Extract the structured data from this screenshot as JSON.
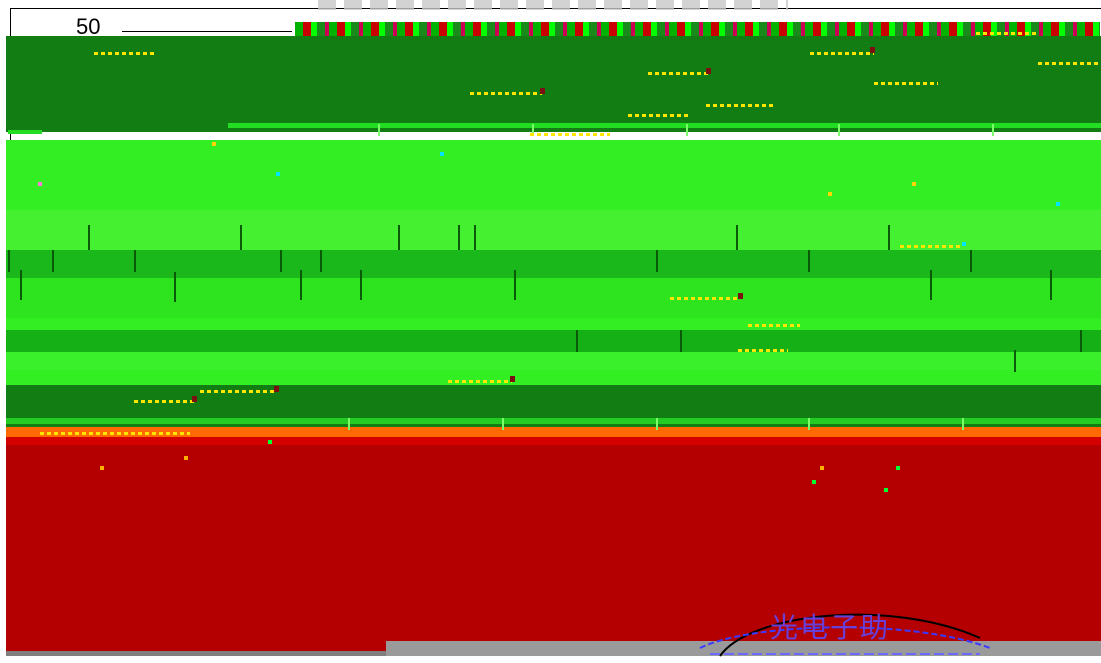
{
  "axis": {
    "value_label": "50"
  },
  "seal": {
    "text": "光电子助"
  }
}
